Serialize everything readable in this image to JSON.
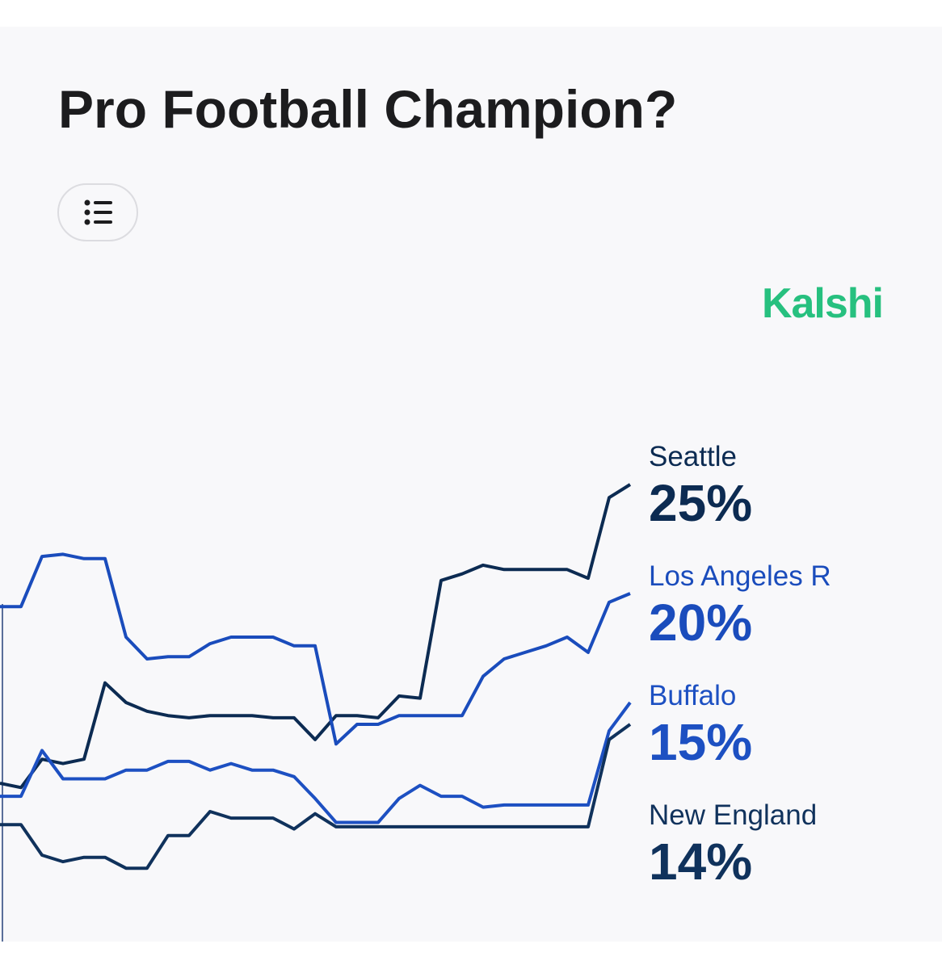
{
  "title": "Pro Football Champion?",
  "brand": "Kalshi",
  "chart_data": {
    "type": "line",
    "ylim": [
      4,
      27
    ],
    "series": [
      {
        "name": "Seattle",
        "color": "#0c2b52",
        "current_label": "25%",
        "values": [
          11.3,
          11.1,
          12.4,
          12.2,
          12.4,
          15.9,
          15.0,
          14.6,
          14.4,
          14.3,
          14.4,
          14.4,
          14.4,
          14.3,
          14.3,
          13.3,
          14.4,
          14.4,
          14.3,
          15.3,
          15.2,
          20.6,
          20.9,
          21.3,
          21.1,
          21.1,
          21.1,
          21.1,
          20.7,
          24.4,
          25
        ]
      },
      {
        "name": "Los Angeles R",
        "color": "#1a4cbc",
        "current_label": "20%",
        "values": [
          19.4,
          19.4,
          21.7,
          21.8,
          21.6,
          21.6,
          18.0,
          17.0,
          17.1,
          17.1,
          17.7,
          18.0,
          18.0,
          18.0,
          17.6,
          17.6,
          13.1,
          14.0,
          14.0,
          14.4,
          14.4,
          14.4,
          14.4,
          16.2,
          17.0,
          17.3,
          17.6,
          18.0,
          17.3,
          19.6,
          20
        ]
      },
      {
        "name": "Buffalo",
        "color": "#1d50c2",
        "current_label": "15%",
        "values": [
          10.7,
          10.7,
          12.8,
          11.5,
          11.5,
          11.5,
          11.9,
          11.9,
          12.3,
          12.3,
          11.9,
          12.2,
          11.9,
          11.9,
          11.6,
          10.6,
          9.5,
          9.5,
          9.5,
          10.6,
          11.2,
          10.7,
          10.7,
          10.2,
          10.3,
          10.3,
          10.3,
          10.3,
          10.3,
          13.7,
          15
        ]
      },
      {
        "name": "New England",
        "color": "#10325c",
        "current_label": "14%",
        "values": [
          9.4,
          9.4,
          8.0,
          7.7,
          7.9,
          7.9,
          7.4,
          7.4,
          8.9,
          8.9,
          10.0,
          9.7,
          9.7,
          9.7,
          9.2,
          9.9,
          9.3,
          9.3,
          9.3,
          9.3,
          9.3,
          9.3,
          9.3,
          9.3,
          9.3,
          9.3,
          9.3,
          9.3,
          9.3,
          13.3,
          14
        ]
      }
    ]
  }
}
